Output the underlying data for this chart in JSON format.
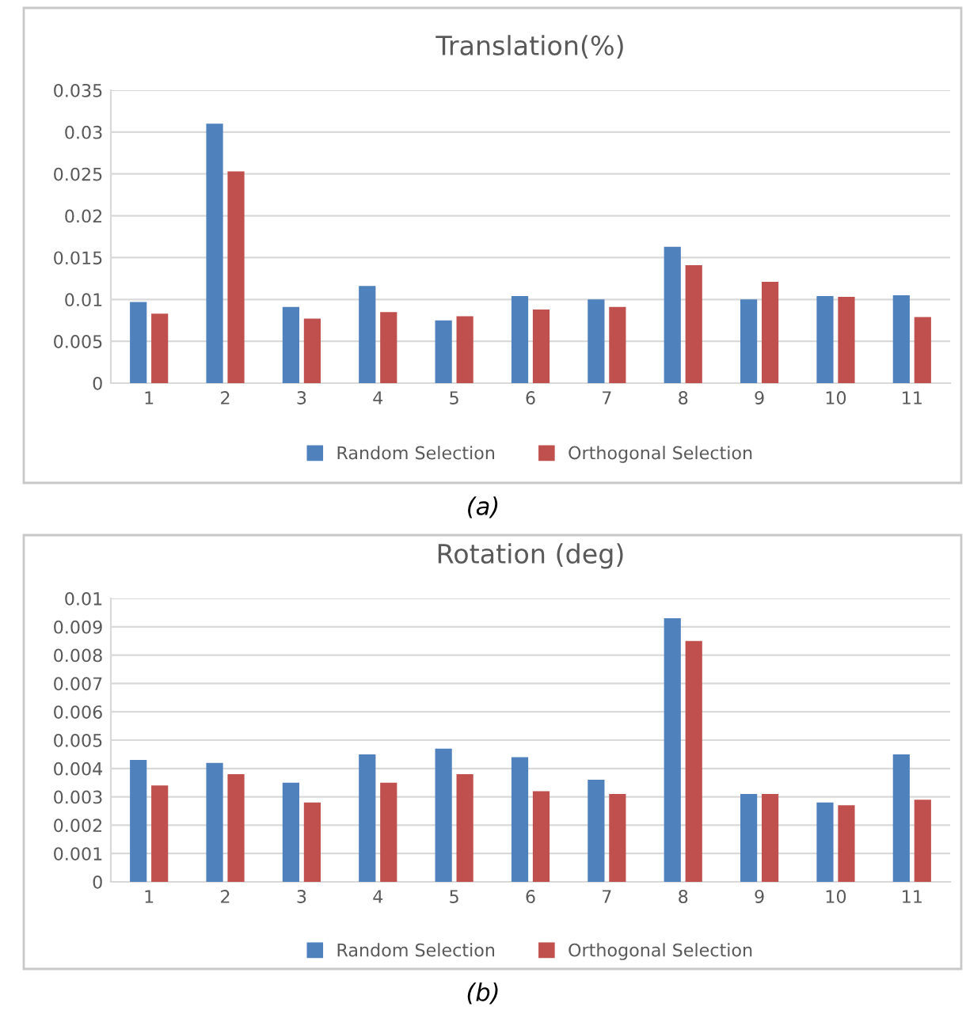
{
  "chart_data": [
    {
      "type": "bar",
      "title": "Translation(%)",
      "categories": [
        "1",
        "2",
        "3",
        "4",
        "5",
        "6",
        "7",
        "8",
        "9",
        "10",
        "11"
      ],
      "series": [
        {
          "name": "Random Selection",
          "color": "#4f81bd",
          "values": [
            0.0097,
            0.031,
            0.0091,
            0.0116,
            0.0075,
            0.0104,
            0.01,
            0.0163,
            0.01,
            0.0104,
            0.0105
          ]
        },
        {
          "name": "Orthogonal Selection",
          "color": "#c0504d",
          "values": [
            0.0083,
            0.0253,
            0.0077,
            0.0085,
            0.008,
            0.0088,
            0.0091,
            0.0141,
            0.0121,
            0.0103,
            0.0079
          ]
        }
      ],
      "ylim": [
        0,
        0.035
      ],
      "yticks": [
        0,
        0.005,
        0.01,
        0.015,
        0.02,
        0.025,
        0.03,
        0.035
      ],
      "grid": "y",
      "legend": "bottom",
      "annotations": [
        "(a)"
      ]
    },
    {
      "type": "bar",
      "title": "Rotation (deg)",
      "categories": [
        "1",
        "2",
        "3",
        "4",
        "5",
        "6",
        "7",
        "8",
        "9",
        "10",
        "11"
      ],
      "series": [
        {
          "name": "Random Selection",
          "color": "#4f81bd",
          "values": [
            0.0043,
            0.0042,
            0.0035,
            0.0045,
            0.0047,
            0.0044,
            0.0036,
            0.0093,
            0.0031,
            0.0028,
            0.0045
          ]
        },
        {
          "name": "Orthogonal Selection",
          "color": "#c0504d",
          "values": [
            0.0034,
            0.0038,
            0.0028,
            0.0035,
            0.0038,
            0.0032,
            0.0031,
            0.0085,
            0.0031,
            0.0027,
            0.0029
          ]
        }
      ],
      "ylim": [
        0,
        0.01
      ],
      "yticks": [
        0,
        0.001,
        0.002,
        0.003,
        0.004,
        0.005,
        0.006,
        0.007,
        0.008,
        0.009,
        0.01
      ],
      "grid": "y",
      "legend": "bottom",
      "annotations": [
        "(b)"
      ]
    }
  ]
}
